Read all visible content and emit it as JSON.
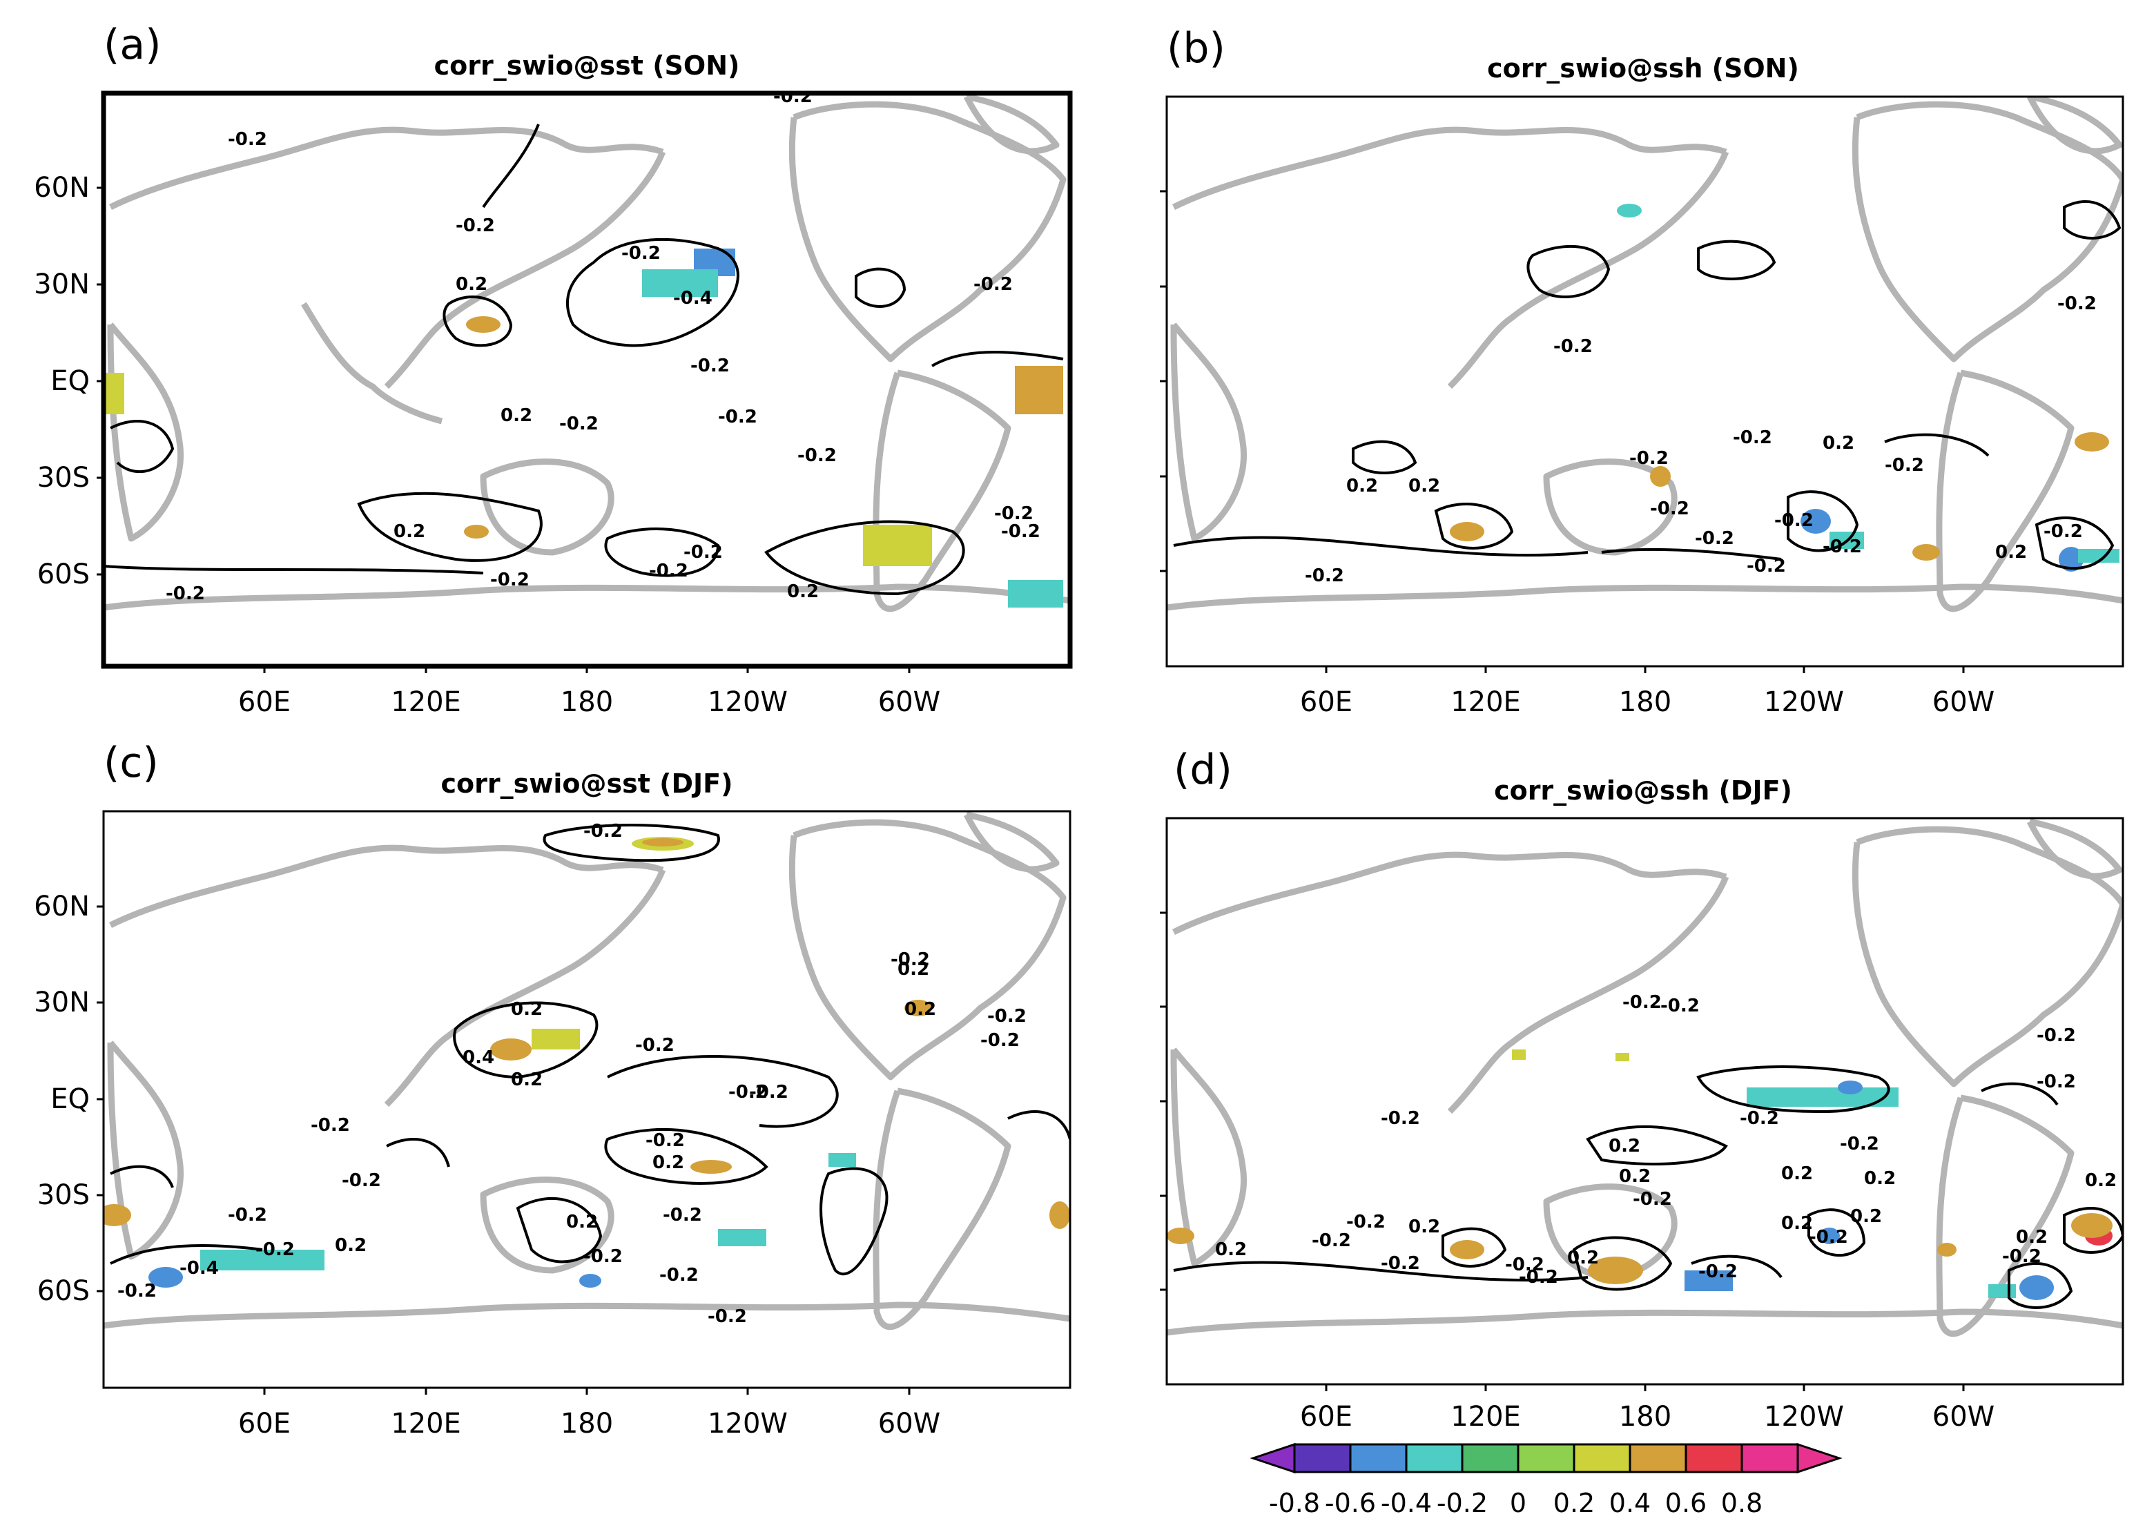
{
  "figure": {
    "land_color": "#b4b4b4",
    "contour_color": "#000000"
  },
  "panels": [
    {
      "letter": "(a)",
      "title": "corr_swio@sst (SON)",
      "lat_labels": [
        "60N",
        "30N",
        "EQ",
        "30S",
        "60S"
      ],
      "lon_labels": [
        "60E",
        "120E",
        "180",
        "120W",
        "60W"
      ],
      "contour_labels": [
        "-0.2",
        "-0.2",
        "-0.2",
        "-0.2",
        "-0.4",
        "0.2",
        "-0.2",
        "-0.2",
        "0.2",
        "-0.2",
        "-0.2",
        "-0.2",
        "0.2",
        "-0.2",
        "-0.2",
        "-0.2",
        "-0.2",
        "0.2",
        "-0.2",
        "-0.2"
      ],
      "shading": [
        {
          "level": "-0.6",
          "color": "#4a90d9"
        },
        {
          "level": "-0.4",
          "color": "#4ecdc4"
        },
        {
          "level": "0.4",
          "color": "#d4a03a"
        },
        {
          "level": "0.2",
          "color": "#cdd23a"
        }
      ]
    },
    {
      "letter": "(b)",
      "title": "corr_swio@ssh (SON)",
      "lat_labels": [],
      "lon_labels": [
        "60E",
        "120E",
        "180",
        "120W",
        "60W"
      ],
      "contour_labels": [
        "-0.2",
        "-0.2",
        "-0.2",
        "0.2",
        "0.2",
        "-0.2",
        "-0.2",
        "-0.2",
        "-0.2",
        "-0.2",
        "0.2",
        "-0.2",
        "-0.2",
        "-0.2",
        "0.2",
        "-0.2"
      ],
      "shading": [
        {
          "level": "-0.4",
          "color": "#4ecdc4"
        },
        {
          "level": "-0.6",
          "color": "#4a90d9"
        },
        {
          "level": "0.4",
          "color": "#d4a03a"
        }
      ]
    },
    {
      "letter": "(c)",
      "title": "corr_swio@sst (DJF)",
      "lat_labels": [
        "60N",
        "30N",
        "EQ",
        "30S",
        "60S"
      ],
      "lon_labels": [
        "60E",
        "120E",
        "180",
        "120W",
        "60W"
      ],
      "contour_labels": [
        "-0.2",
        "-0.2",
        "0.2",
        "0.4",
        "0.2",
        "-0.2",
        "-0.2",
        "-0.2",
        "0.2",
        "-0.2",
        "-0.2",
        "-0.2",
        "0.2",
        "-0.2",
        "0.2",
        "-0.4",
        "-0.2",
        "0.2",
        "-0.2",
        "-0.2",
        "-0.2",
        "-0.2",
        "-0.2",
        "-0.2",
        "0.2",
        "-0.2"
      ],
      "shading": [
        {
          "level": "0.4",
          "color": "#d4a03a"
        },
        {
          "level": "0.2",
          "color": "#cdd23a"
        },
        {
          "level": "-0.4",
          "color": "#4ecdc4"
        },
        {
          "level": "-0.6",
          "color": "#4a90d9"
        }
      ]
    },
    {
      "letter": "(d)",
      "title": "corr_swio@ssh (DJF)",
      "lat_labels": [],
      "lon_labels": [
        "60E",
        "120E",
        "180",
        "120W",
        "60W"
      ],
      "contour_labels": [
        "-0.2",
        "-0.2",
        "-0.2",
        "-0.2",
        "0.2",
        "-0.2",
        "-0.2",
        "0.2",
        "-0.2",
        "0.2",
        "0.2",
        "0.2",
        "-0.2",
        "-0.2",
        "0.2",
        "-0.2",
        "0.2",
        "-0.2",
        "-0.2",
        "0.2",
        "-0.2",
        "0.2",
        "-0.2",
        "0.2",
        "0.2",
        "-0.2",
        "-0.2"
      ],
      "shading": [
        {
          "level": "-0.4",
          "color": "#4ecdc4"
        },
        {
          "level": "0.4",
          "color": "#d4a03a"
        },
        {
          "level": "-0.6",
          "color": "#4a90d9"
        },
        {
          "level": "0.6",
          "color": "#e8394a"
        }
      ]
    }
  ],
  "colorbar": {
    "labels": [
      "-0.8",
      "-0.6",
      "-0.4",
      "-0.2",
      "0",
      "0.2",
      "0.4",
      "0.6",
      "0.8"
    ],
    "colors": [
      "#8a2ec4",
      "#5b35b8",
      "#4a90d9",
      "#4ecdc4",
      "#4dbb6a",
      "#8fd14f",
      "#cdd23a",
      "#d4a03a",
      "#e8394a",
      "#e8328f"
    ]
  }
}
